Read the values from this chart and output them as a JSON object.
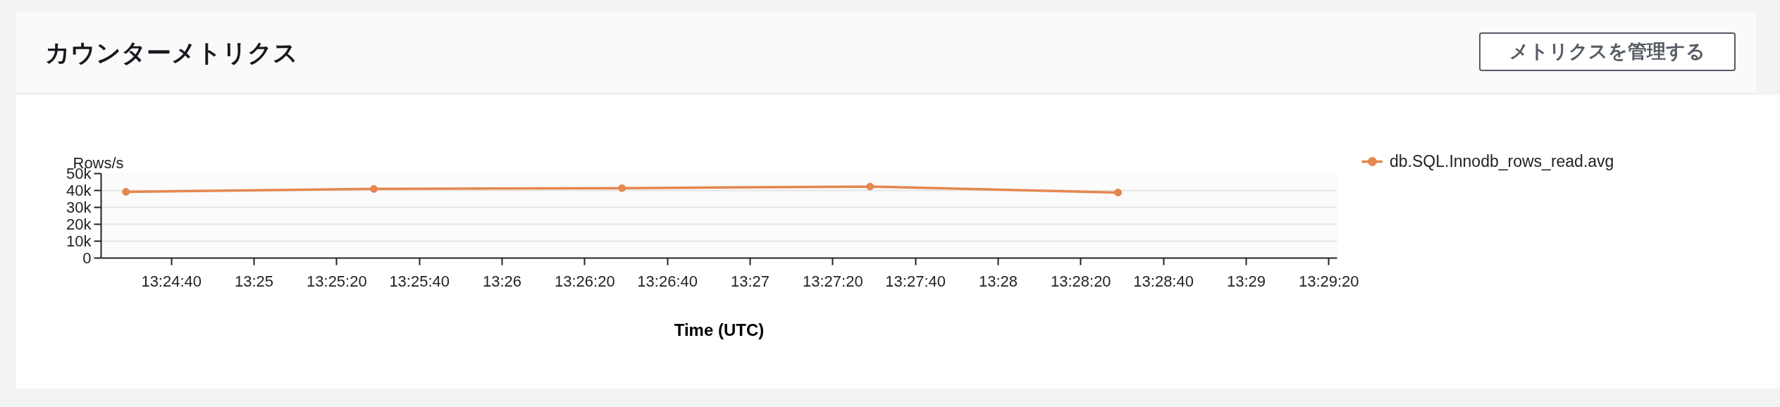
{
  "chart_data": {
    "type": "line",
    "title": "カウンターメトリクス",
    "annotations": [
      "メトリクスを管理する"
    ],
    "xlabel": "Time (UTC)",
    "ylabel": "Rows/s",
    "x": [
      13.408056,
      13.424722,
      13.441389,
      13.458056,
      13.474722
    ],
    "series": [
      {
        "name": "db.SQL.Innodb_rows_read.avg",
        "color": "#e5874f",
        "values": [
          39200,
          40900,
          41400,
          42300,
          38800
        ]
      }
    ],
    "xlim": [
      13.406389,
      13.489444
    ],
    "xticks": [
      {
        "value": 13.411111,
        "label": "13:24:40"
      },
      {
        "value": 13.416667,
        "label": "13:25"
      },
      {
        "value": 13.422222,
        "label": "13:25:20"
      },
      {
        "value": 13.427778,
        "label": "13:25:40"
      },
      {
        "value": 13.433333,
        "label": "13:26"
      },
      {
        "value": 13.438889,
        "label": "13:26:20"
      },
      {
        "value": 13.444444,
        "label": "13:26:40"
      },
      {
        "value": 13.45,
        "label": "13:27"
      },
      {
        "value": 13.455556,
        "label": "13:27:20"
      },
      {
        "value": 13.461111,
        "label": "13:27:40"
      },
      {
        "value": 13.466667,
        "label": "13:28"
      },
      {
        "value": 13.472222,
        "label": "13:28:20"
      },
      {
        "value": 13.477778,
        "label": "13:28:40"
      },
      {
        "value": 13.483333,
        "label": "13:29"
      },
      {
        "value": 13.488889,
        "label": "13:29:20"
      }
    ],
    "ylim": [
      0,
      50000
    ],
    "yticks": [
      0,
      {
        "value": 10000,
        "label": "10k"
      },
      {
        "value": 20000,
        "label": "20k"
      },
      {
        "value": 30000,
        "label": "30k"
      },
      {
        "value": 40000,
        "label": "40k"
      },
      {
        "value": 50000,
        "label": "50k"
      }
    ],
    "grid": "y",
    "legend": "top right",
    "marker": "circle",
    "line_style": "solid"
  }
}
